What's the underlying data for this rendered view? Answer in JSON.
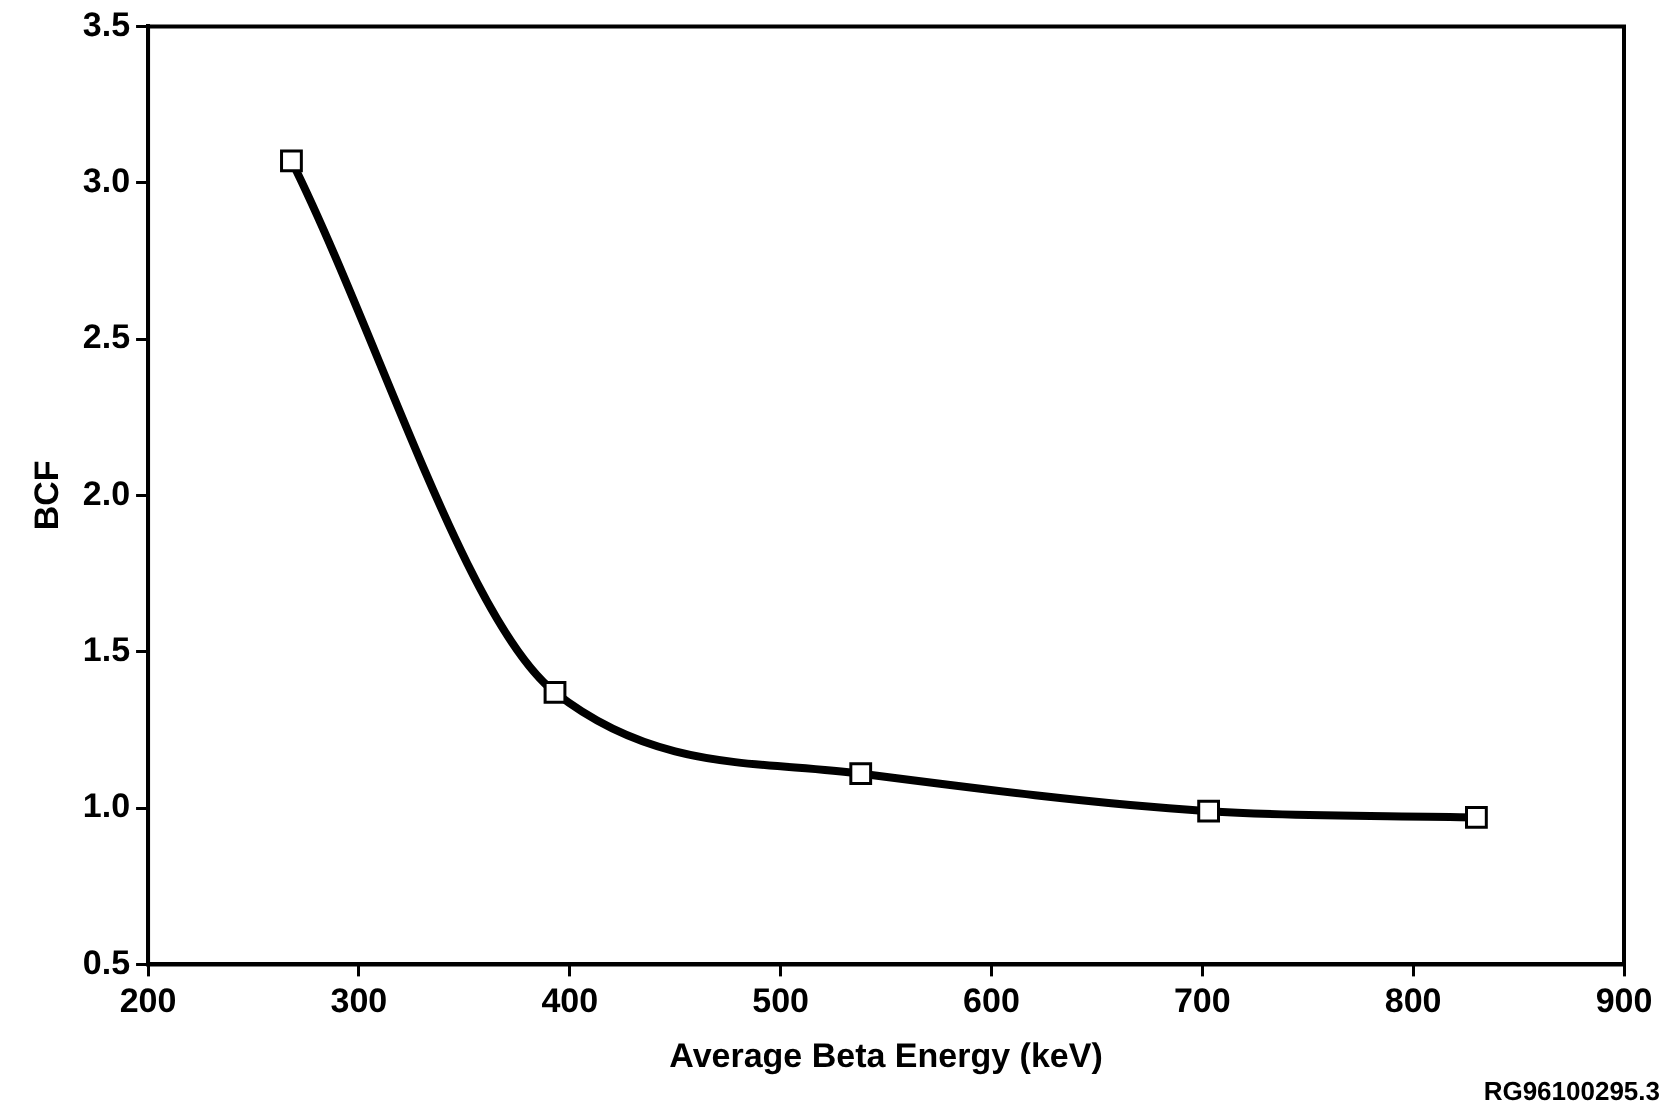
{
  "chart_data": {
    "type": "line",
    "xlabel": "Average Beta Energy (keV)",
    "ylabel": "BCF",
    "x": [
      268,
      393,
      538,
      703,
      830
    ],
    "series": [
      {
        "color": "#000000",
        "values": [
          3.07,
          1.37,
          1.11,
          0.99,
          0.97
        ]
      }
    ],
    "xlim": [
      200,
      900
    ],
    "xticks": [
      200,
      300,
      400,
      500,
      600,
      700,
      800,
      900
    ],
    "ylim": [
      0.5,
      3.5
    ],
    "yticks": [
      {
        "value": 0.5,
        "label": "0.5"
      },
      {
        "value": 1,
        "label": "1.0"
      },
      {
        "value": 1.5,
        "label": "1.5"
      },
      {
        "value": 2,
        "label": "2.0"
      },
      {
        "value": 2.5,
        "label": "2.5"
      },
      {
        "value": 3,
        "label": "3.0"
      },
      {
        "value": 3.5,
        "label": "3.5"
      }
    ],
    "grid": false,
    "legend": false,
    "marker": "square",
    "line_style": "solid",
    "annotations": [
      "RG96100295.3"
    ]
  }
}
